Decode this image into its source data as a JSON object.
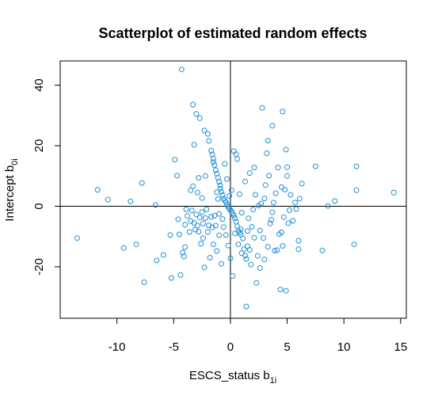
{
  "chart_data": {
    "type": "scatter",
    "title": "Scatterplot of estimated random effects",
    "xlabel": {
      "main": "ESCS_status  b",
      "sub": "1i"
    },
    "ylabel": {
      "main": "Intercept b",
      "sub": "0i"
    },
    "xlim": [
      -15,
      15.5
    ],
    "ylim": [
      -37,
      48
    ],
    "x_ticks": [
      -10,
      -5,
      0,
      5,
      10,
      15
    ],
    "x_tick_labels": [
      "-10",
      "-5",
      "0",
      "5",
      "10",
      "15"
    ],
    "y_ticks": [
      -20,
      0,
      20,
      40
    ],
    "y_tick_labels": [
      "-20",
      "0",
      "20",
      "40"
    ],
    "reference_lines": {
      "x": 0,
      "y": 0
    },
    "grid": false,
    "point_color": "#1f8fd6",
    "points": [
      [
        -13.5,
        -10.5
      ],
      [
        -11.7,
        5.4
      ],
      [
        -10.8,
        2.2
      ],
      [
        -9.4,
        -13.8
      ],
      [
        -8.8,
        1.6
      ],
      [
        -8.3,
        -12.6
      ],
      [
        -7.8,
        7.7
      ],
      [
        -7.6,
        -25.1
      ],
      [
        -6.6,
        0.4
      ],
      [
        -6.5,
        -17.9
      ],
      [
        -5.9,
        -16.1
      ],
      [
        -5.3,
        -9.5
      ],
      [
        -5.2,
        -23.7
      ],
      [
        -4.9,
        15.4
      ],
      [
        -4.7,
        10.1
      ],
      [
        -4.6,
        -4.3
      ],
      [
        -4.5,
        -9.3
      ],
      [
        -4.4,
        -22.7
      ],
      [
        -4.3,
        45.2
      ],
      [
        -4.2,
        -15.3
      ],
      [
        -4.1,
        -16.6
      ],
      [
        -4.0,
        -13.5
      ],
      [
        -4.0,
        -6.1
      ],
      [
        -3.9,
        -1.0
      ],
      [
        -3.8,
        -3.2
      ],
      [
        -3.6,
        -8.5
      ],
      [
        -3.5,
        -4.9
      ],
      [
        -3.5,
        5.3
      ],
      [
        -3.4,
        -1.4
      ],
      [
        -3.3,
        6.6
      ],
      [
        -3.3,
        33.6
      ],
      [
        -3.2,
        -5.5
      ],
      [
        -3.2,
        20.3
      ],
      [
        -3.1,
        -7.7
      ],
      [
        -3.0,
        -2.7
      ],
      [
        -3.0,
        30.5
      ],
      [
        -2.9,
        4.5
      ],
      [
        -2.9,
        -6.4
      ],
      [
        -2.8,
        9.4
      ],
      [
        -2.8,
        -8.4
      ],
      [
        -2.7,
        -3.7
      ],
      [
        -2.7,
        29.1
      ],
      [
        -2.6,
        -12.4
      ],
      [
        -2.5,
        -1.9
      ],
      [
        -2.5,
        2.7
      ],
      [
        -2.4,
        -5.7
      ],
      [
        -2.4,
        -10.5
      ],
      [
        -2.3,
        25.0
      ],
      [
        -2.3,
        -20.2
      ],
      [
        -2.2,
        -3.9
      ],
      [
        -2.2,
        10.0
      ],
      [
        -2.1,
        -1.0
      ],
      [
        -2.0,
        23.9
      ],
      [
        -2.0,
        -8.5
      ],
      [
        -1.9,
        -6.3
      ],
      [
        -1.9,
        21.6
      ],
      [
        -1.8,
        -17.0
      ],
      [
        -1.7,
        18.4
      ],
      [
        -1.7,
        -3.5
      ],
      [
        -1.6,
        17.1
      ],
      [
        -1.6,
        -7.0
      ],
      [
        -1.5,
        15.7
      ],
      [
        -1.5,
        -12.6
      ],
      [
        -1.5,
        14.6
      ],
      [
        -1.4,
        -3.1
      ],
      [
        -1.4,
        13.6
      ],
      [
        -1.3,
        11.9
      ],
      [
        -1.3,
        -6.4
      ],
      [
        -1.2,
        10.8
      ],
      [
        -1.2,
        4.6
      ],
      [
        -1.2,
        -14.8
      ],
      [
        -1.1,
        9.4
      ],
      [
        -1.1,
        2.4
      ],
      [
        -1.0,
        -9.6
      ],
      [
        -1.0,
        -2.5
      ],
      [
        -1.0,
        8.1
      ],
      [
        -0.9,
        6.9
      ],
      [
        -0.9,
        5.8
      ],
      [
        -0.8,
        -19.0
      ],
      [
        -0.8,
        4.8
      ],
      [
        -0.7,
        -4.2
      ],
      [
        -0.7,
        3.7
      ],
      [
        -0.6,
        2.5
      ],
      [
        -0.6,
        -6.9
      ],
      [
        -0.5,
        14.0
      ],
      [
        -0.5,
        1.9
      ],
      [
        -0.4,
        -9.5
      ],
      [
        -0.4,
        1.4
      ],
      [
        -0.3,
        9.0
      ],
      [
        -0.3,
        0.6
      ],
      [
        -0.2,
        -13.0
      ],
      [
        -0.2,
        -0.2
      ],
      [
        -0.1,
        3.4
      ],
      [
        -0.1,
        -0.8
      ],
      [
        0.0,
        -1.2
      ],
      [
        0.0,
        -17.2
      ],
      [
        0.1,
        -1.8
      ],
      [
        0.1,
        5.3
      ],
      [
        0.2,
        -23.0
      ],
      [
        0.2,
        -2.4
      ],
      [
        0.3,
        18.2
      ],
      [
        0.3,
        -3.0
      ],
      [
        0.4,
        -9.0
      ],
      [
        0.4,
        -4.0
      ],
      [
        0.5,
        17.2
      ],
      [
        0.5,
        -5.1
      ],
      [
        0.6,
        15.6
      ],
      [
        0.6,
        -6.6
      ],
      [
        0.7,
        -8.1
      ],
      [
        0.7,
        -12.6
      ],
      [
        0.8,
        -8.7
      ],
      [
        0.8,
        4.0
      ],
      [
        0.9,
        -9.3
      ],
      [
        0.9,
        -7.6
      ],
      [
        1.0,
        -2.1
      ],
      [
        1.0,
        -15.5
      ],
      [
        1.1,
        -10.6
      ],
      [
        1.2,
        -14.2
      ],
      [
        1.3,
        -16.3
      ],
      [
        1.3,
        8.2
      ],
      [
        1.4,
        -17.4
      ],
      [
        1.4,
        -33.1
      ],
      [
        1.5,
        -8.2
      ],
      [
        1.5,
        -13.2
      ],
      [
        1.6,
        -4.0
      ],
      [
        1.7,
        11.0
      ],
      [
        1.7,
        -14.4
      ],
      [
        1.8,
        -19.3
      ],
      [
        1.9,
        -6.8
      ],
      [
        2.0,
        -1.1
      ],
      [
        2.1,
        12.8
      ],
      [
        2.1,
        -10.4
      ],
      [
        2.2,
        3.8
      ],
      [
        2.3,
        -25.3
      ],
      [
        2.4,
        -16.4
      ],
      [
        2.5,
        0.2
      ],
      [
        2.6,
        -8.0
      ],
      [
        2.6,
        -20.4
      ],
      [
        2.7,
        0.9
      ],
      [
        2.8,
        32.5
      ],
      [
        2.9,
        -10.5
      ],
      [
        3.0,
        2.6
      ],
      [
        3.0,
        -17.6
      ],
      [
        3.1,
        7.0
      ],
      [
        3.2,
        17.5
      ],
      [
        3.3,
        21.7
      ],
      [
        3.3,
        -13.4
      ],
      [
        3.4,
        10.1
      ],
      [
        3.5,
        -5.7
      ],
      [
        3.6,
        -4.5
      ],
      [
        3.7,
        -2.0
      ],
      [
        3.7,
        26.6
      ],
      [
        3.8,
        1.2
      ],
      [
        3.9,
        -14.7
      ],
      [
        4.0,
        4.3
      ],
      [
        4.1,
        -14.5
      ],
      [
        4.2,
        12.8
      ],
      [
        4.3,
        -9.2
      ],
      [
        4.4,
        -27.5
      ],
      [
        4.5,
        6.3
      ],
      [
        4.5,
        -8.6
      ],
      [
        4.6,
        -13.1
      ],
      [
        4.6,
        31.3
      ],
      [
        4.7,
        -3.6
      ],
      [
        4.8,
        5.5
      ],
      [
        4.9,
        18.7
      ],
      [
        4.9,
        -27.9
      ],
      [
        5.0,
        12.9
      ],
      [
        5.0,
        10.0
      ],
      [
        5.1,
        -5.6
      ],
      [
        5.2,
        -1.3
      ],
      [
        5.3,
        3.8
      ],
      [
        5.5,
        -4.8
      ],
      [
        5.7,
        1.2
      ],
      [
        5.8,
        -0.9
      ],
      [
        6.0,
        -11.4
      ],
      [
        6.0,
        -14.2
      ],
      [
        6.1,
        2.5
      ],
      [
        6.3,
        7.5
      ],
      [
        7.5,
        13.2
      ],
      [
        8.1,
        -14.6
      ],
      [
        8.6,
        0.1
      ],
      [
        9.2,
        1.7
      ],
      [
        10.9,
        -12.6
      ],
      [
        11.1,
        13.2
      ],
      [
        11.1,
        5.3
      ],
      [
        14.4,
        4.5
      ]
    ]
  }
}
